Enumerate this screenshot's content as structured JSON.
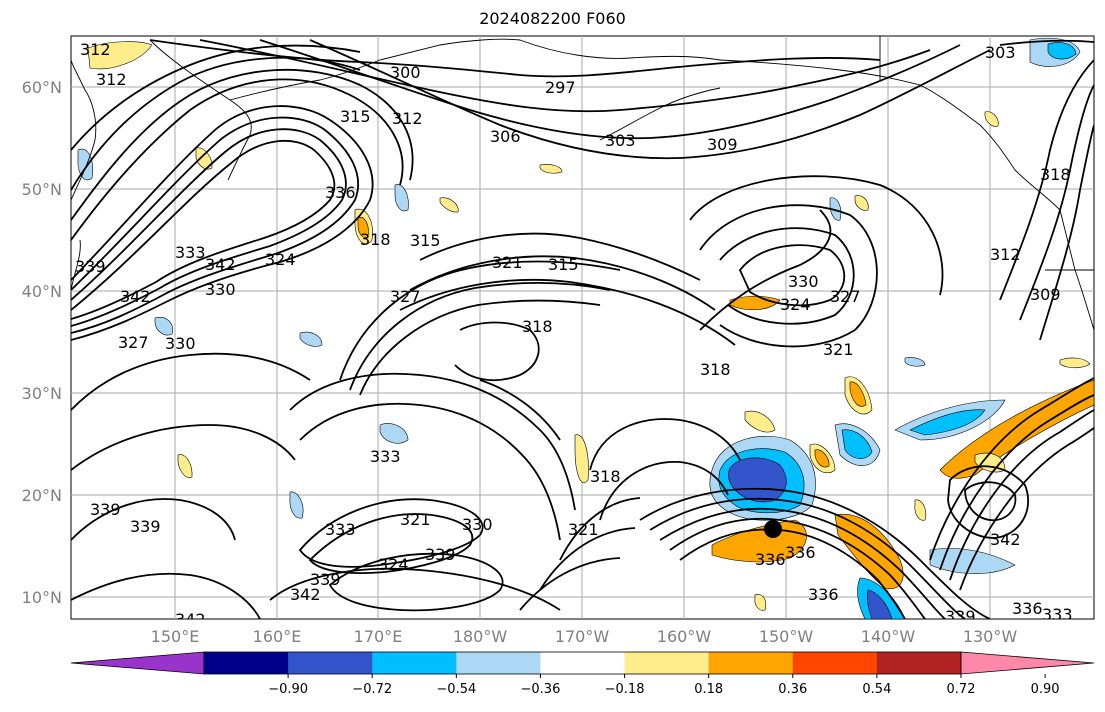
{
  "title": "2024082200 F060",
  "lat_labels": [
    "60°N",
    "50°N",
    "40°N",
    "30°N",
    "20°N",
    "10°N"
  ],
  "lon_labels": [
    "150°E",
    "160°E",
    "170°E",
    "180°W",
    "170°W",
    "160°W",
    "150°W",
    "140°W",
    "130°W"
  ],
  "colorbar": {
    "colors": [
      "#9933cc",
      "#00008b",
      "#3355cc",
      "#00bfff",
      "#add8f5",
      "#ffffff",
      "#ffec8b",
      "#ffa500",
      "#ff4500",
      "#b22222",
      "#ff88aa"
    ],
    "ticks": [
      "−0.90",
      "−0.72",
      "−0.54",
      "−0.36",
      "−0.18",
      "0.18",
      "0.36",
      "0.54",
      "0.72",
      "0.90"
    ]
  },
  "contour_labels": [
    "312",
    "312",
    "300",
    "297",
    "315",
    "312",
    "306",
    "303",
    "309",
    "303",
    "336",
    "318",
    "315",
    "321",
    "315",
    "330",
    "324",
    "327",
    "327",
    "321",
    "318",
    "318",
    "330",
    "327",
    "333",
    "342",
    "324",
    "339",
    "342",
    "330",
    "333",
    "321",
    "324",
    "339",
    "330",
    "321",
    "318",
    "339",
    "333",
    "339",
    "342",
    "339",
    "336",
    "336",
    "336",
    "342",
    "339",
    "336",
    "333",
    "342",
    "318",
    "312",
    "309"
  ]
}
